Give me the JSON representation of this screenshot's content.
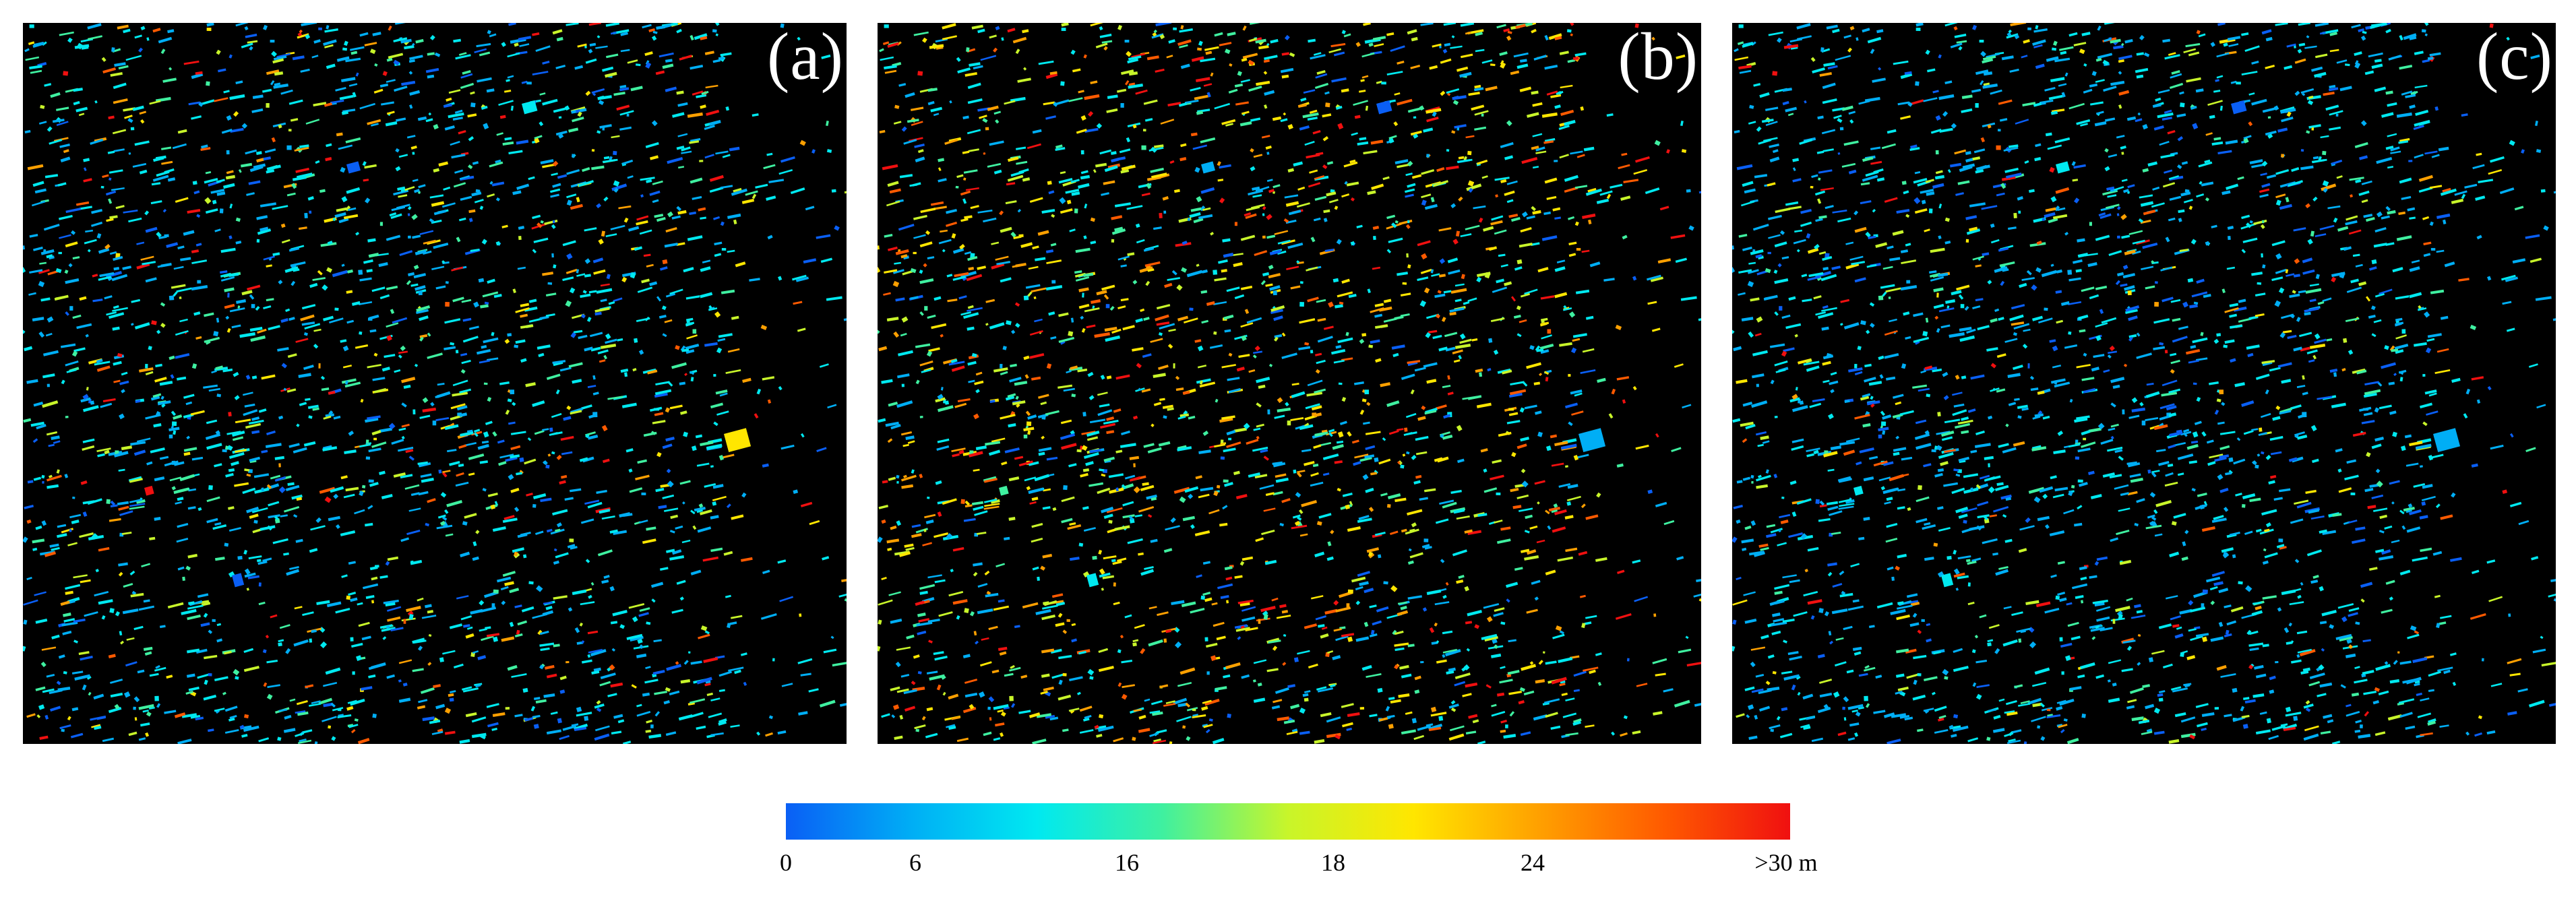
{
  "panels": [
    {
      "label": "(a)",
      "seed": 11,
      "scheme": "mixed"
    },
    {
      "label": "(b)",
      "seed": 23,
      "scheme": "warm"
    },
    {
      "label": "(c)",
      "seed": 37,
      "scheme": "cool"
    }
  ],
  "colorbar": {
    "ticks": [
      "0",
      "6",
      "16",
      "18",
      "24",
      ">30 m"
    ],
    "colors": [
      "#0a5ff5",
      "#00aef5",
      "#00e9f0",
      "#3ff0a0",
      "#c8f52a",
      "#ffe600",
      "#ffa000",
      "#ff5a00",
      "#f01010"
    ]
  },
  "background_color": "#000000"
}
